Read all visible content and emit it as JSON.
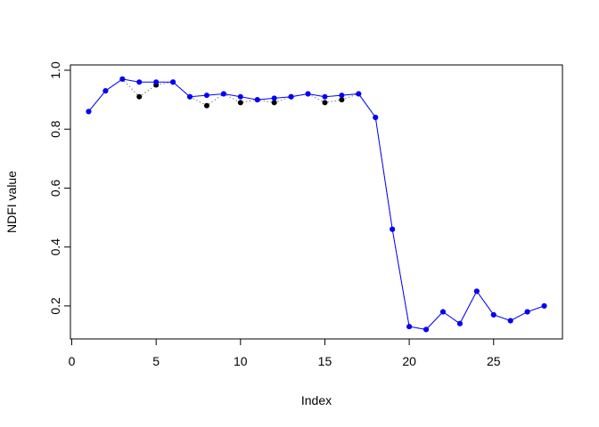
{
  "chart_data": {
    "type": "line",
    "x_label": "Index",
    "y_label": "NDFI value",
    "x": [
      1,
      2,
      3,
      4,
      5,
      6,
      7,
      8,
      9,
      10,
      11,
      12,
      13,
      14,
      15,
      16,
      17,
      18,
      19,
      20,
      21,
      22,
      23,
      24,
      25,
      26,
      27,
      28
    ],
    "series": [
      {
        "color": "#000000",
        "line_style": "dotted",
        "values": [
          0.86,
          0.93,
          0.97,
          0.91,
          0.95,
          0.96,
          0.91,
          0.88,
          0.92,
          0.89,
          0.9,
          0.89,
          0.91,
          0.92,
          0.89,
          0.9,
          0.92,
          0.84,
          0.46,
          0.13,
          0.12,
          0.18,
          0.14,
          0.25,
          0.17,
          0.15,
          0.18,
          0.2
        ]
      },
      {
        "color": "#0000ff",
        "line_style": "solid",
        "values": [
          0.86,
          0.93,
          0.97,
          0.96,
          0.96,
          0.96,
          0.91,
          0.915,
          0.92,
          0.91,
          0.9,
          0.905,
          0.91,
          0.92,
          0.91,
          0.915,
          0.92,
          0.84,
          0.46,
          0.13,
          0.12,
          0.18,
          0.14,
          0.25,
          0.17,
          0.15,
          0.18,
          0.2
        ]
      }
    ],
    "xlim": [
      -0.08,
      29.08
    ],
    "ylim": [
      0.088,
      1.018
    ],
    "xticks": [
      0,
      5,
      10,
      15,
      20,
      25
    ],
    "yticks": [
      0.2,
      0.4,
      0.6,
      0.8,
      {
        "value": 1,
        "label": "1.0"
      }
    ],
    "grid": false
  }
}
